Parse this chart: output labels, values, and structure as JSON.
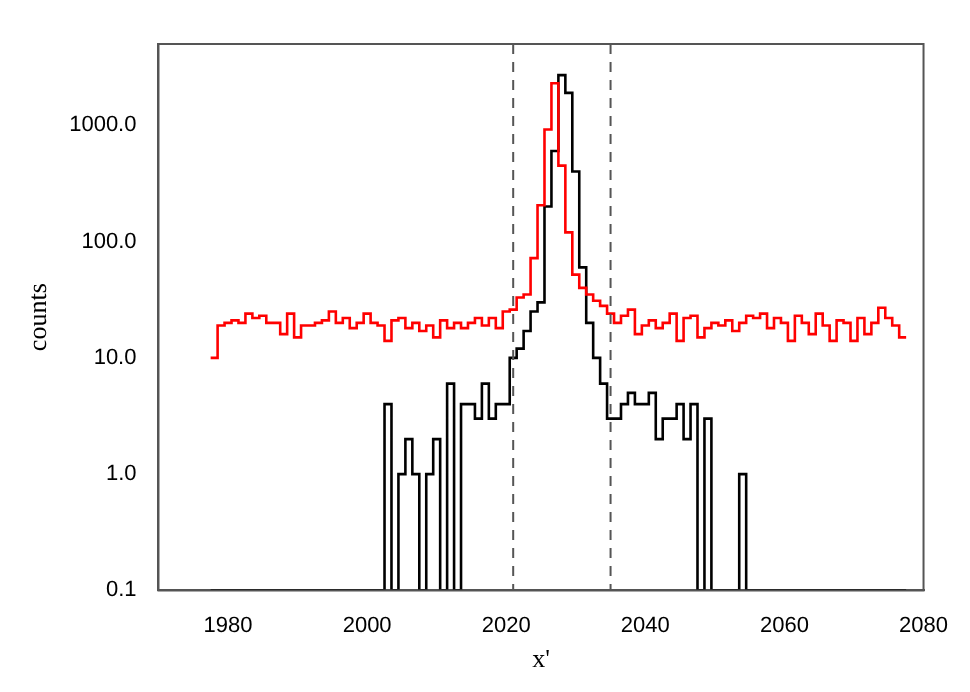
{
  "chart_data": {
    "type": "histogram",
    "xlabel": "x'",
    "ylabel": "counts",
    "bins": [
      1977.5,
      1978.5,
      1979.5,
      1980.5,
      1981.5,
      1982.5,
      1983.5,
      1984.5,
      1985.5,
      1986.5,
      1987.5,
      1988.5,
      1989.5,
      1990.5,
      1991.5,
      1992.5,
      1993.5,
      1994.5,
      1995.5,
      1996.5,
      1997.5,
      1998.5,
      1999.5,
      2000.5,
      2001.5,
      2002.5,
      2003.5,
      2004.5,
      2005.5,
      2006.5,
      2007.5,
      2008.5,
      2009.5,
      2010.5,
      2011.5,
      2012.5,
      2013.5,
      2014.5,
      2015.5,
      2016.5,
      2017.5,
      2018.5,
      2019.5,
      2020.5,
      2021.5,
      2022.5,
      2023.5,
      2024.5,
      2025.5,
      2026.5,
      2027.5,
      2028.5,
      2029.5,
      2030.5,
      2031.5,
      2032.5,
      2033.5,
      2034.5,
      2035.5,
      2036.5,
      2037.5,
      2038.5,
      2039.5,
      2040.5,
      2041.5,
      2042.5,
      2043.5,
      2044.5,
      2045.5,
      2046.5,
      2047.5,
      2048.5,
      2049.5,
      2050.5,
      2051.5,
      2052.5,
      2053.5,
      2054.5,
      2055.5,
      2056.5,
      2057.5,
      2058.5,
      2059.5,
      2060.5,
      2061.5,
      2062.5,
      2063.5,
      2064.5,
      2065.5,
      2066.5,
      2067.5,
      2068.5,
      2069.5,
      2070.5,
      2071.5,
      2072.5,
      2073.5,
      2074.5,
      2075.5,
      2076.5,
      2077.5
    ],
    "series": [
      {
        "color": "#ff0000",
        "values": [
          10,
          19,
          20,
          21,
          20,
          24,
          22,
          23,
          20,
          20,
          16,
          24,
          15,
          19,
          19,
          20,
          21,
          25,
          20,
          22,
          18,
          20,
          24,
          20,
          19,
          14,
          21,
          22,
          18,
          20,
          17,
          19,
          15,
          21,
          18,
          20,
          18,
          20,
          22,
          19,
          22,
          18,
          25,
          26,
          33,
          35,
          72,
          205,
          920,
          2300,
          450,
          120,
          52,
          40,
          35,
          31,
          28,
          24,
          20,
          23,
          26,
          16,
          19,
          21,
          18,
          20,
          24,
          14,
          22,
          23,
          15,
          18,
          20,
          19,
          21,
          17,
          20,
          23,
          22,
          24,
          18,
          22,
          20,
          14,
          23,
          20,
          16,
          24,
          19,
          14,
          21,
          20,
          14,
          22,
          16,
          20,
          27,
          22,
          19,
          15
        ]
      },
      {
        "color": "#000000",
        "values": [
          null,
          null,
          null,
          null,
          null,
          null,
          null,
          null,
          null,
          null,
          null,
          null,
          null,
          null,
          null,
          null,
          null,
          null,
          null,
          null,
          null,
          null,
          null,
          null,
          null,
          4,
          null,
          1,
          2,
          1,
          null,
          1,
          2,
          null,
          6,
          null,
          4,
          4,
          3,
          6,
          3,
          4,
          4,
          10,
          12,
          17,
          25,
          30,
          200,
          600,
          2700,
          1900,
          400,
          60,
          20,
          10,
          6,
          3,
          3,
          4,
          5,
          4,
          4,
          5,
          2,
          3,
          3,
          4,
          2,
          4,
          null,
          3,
          null,
          null,
          null,
          null,
          1,
          null,
          null,
          null,
          null,
          null,
          null,
          null,
          null,
          null,
          null,
          null,
          null,
          null,
          null,
          null,
          null,
          null,
          null,
          null,
          null,
          null,
          null,
          null
        ]
      }
    ],
    "xlim": [
      1970,
      2080
    ],
    "xticks": [
      1980,
      2000,
      2020,
      2040,
      2060,
      2080
    ],
    "log": true,
    "ylim": [
      0.1,
      5000
    ],
    "yticks": [
      {
        "value": 0.1,
        "label": "0.1"
      },
      {
        "value": 1,
        "label": "1.0"
      },
      {
        "value": 10,
        "label": "10.0"
      },
      {
        "value": 100,
        "label": "100.0"
      },
      {
        "value": 1000,
        "label": "1000.0"
      }
    ],
    "ref_lines": [
      {
        "axis": "x",
        "value": 2021,
        "color": "#555555",
        "line_style": "dashed"
      },
      {
        "axis": "x",
        "value": 2035,
        "color": "#555555",
        "line_style": "dashed"
      }
    ],
    "grid": false,
    "legend": false
  }
}
